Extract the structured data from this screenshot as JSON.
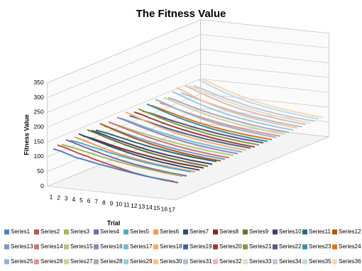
{
  "chart_data": {
    "type": "line3d",
    "title": "The Fitness Value",
    "x_label": "Trial",
    "y_label": "Fitness Value",
    "categories": [
      "1",
      "2",
      "3",
      "4",
      "5",
      "6",
      "7",
      "8",
      "9",
      "10",
      "11",
      "12",
      "13",
      "14",
      "15",
      "16",
      "17"
    ],
    "ylim": [
      0,
      350
    ],
    "yticks": [
      0,
      50,
      100,
      150,
      200,
      250,
      300,
      350
    ],
    "grid": true,
    "legend": "bottom",
    "series": [
      {
        "name": "Series1",
        "color": "#4F81BD",
        "values": [
          125,
          120,
          112,
          104,
          100,
          95,
          90,
          86,
          82,
          78,
          74,
          70,
          67,
          64,
          62,
          60,
          58
        ]
      },
      {
        "name": "Series2",
        "color": "#C0504D",
        "values": [
          132,
          126,
          118,
          110,
          104,
          96,
          90,
          84,
          78,
          72,
          66,
          62,
          58,
          55,
          52,
          50,
          48
        ]
      },
      {
        "name": "Series3",
        "color": "#9BBB59",
        "values": [
          128,
          124,
          119,
          113,
          108,
          102,
          97,
          92,
          88,
          84,
          80,
          77,
          74,
          71,
          68,
          66,
          64
        ]
      },
      {
        "name": "Series4",
        "color": "#8064A2",
        "values": [
          138,
          131,
          123,
          116,
          109,
          102,
          96,
          90,
          85,
          80,
          76,
          72,
          69,
          66,
          63,
          61,
          59
        ]
      },
      {
        "name": "Series5",
        "color": "#4BACC6",
        "values": [
          130,
          127,
          121,
          115,
          110,
          104,
          99,
          94,
          90,
          86,
          82,
          79,
          76,
          73,
          71,
          69,
          67
        ]
      },
      {
        "name": "Series6",
        "color": "#F79646",
        "values": [
          135,
          129,
          122,
          114,
          107,
          100,
          94,
          89,
          84,
          80,
          76,
          73,
          70,
          67,
          65,
          63,
          61
        ]
      },
      {
        "name": "Series7",
        "color": "#2C4D75",
        "values": [
          140,
          133,
          125,
          118,
          111,
          104,
          98,
          92,
          87,
          82,
          78,
          74,
          71,
          68,
          65,
          63,
          61
        ]
      },
      {
        "name": "Series8",
        "color": "#772C2A",
        "values": [
          127,
          123,
          117,
          111,
          105,
          99,
          94,
          89,
          85,
          81,
          77,
          74,
          71,
          68,
          66,
          64,
          62
        ]
      },
      {
        "name": "Series9",
        "color": "#5F7530",
        "values": [
          142,
          135,
          127,
          119,
          112,
          105,
          99,
          93,
          88,
          83,
          79,
          75,
          72,
          69,
          66,
          64,
          62
        ]
      },
      {
        "name": "Series10",
        "color": "#4D3B62",
        "values": [
          134,
          128,
          121,
          114,
          108,
          102,
          96,
          91,
          86,
          82,
          78,
          75,
          72,
          69,
          67,
          65,
          63
        ]
      },
      {
        "name": "Series11",
        "color": "#276A7C",
        "values": [
          129,
          125,
          120,
          114,
          109,
          103,
          98,
          93,
          89,
          85,
          81,
          78,
          75,
          72,
          70,
          68,
          66
        ]
      },
      {
        "name": "Series12",
        "color": "#B65708",
        "values": [
          145,
          137,
          128,
          120,
          112,
          105,
          99,
          93,
          88,
          83,
          79,
          75,
          72,
          69,
          66,
          64,
          62
        ]
      },
      {
        "name": "Series13",
        "color": "#729ACA",
        "values": [
          131,
          126,
          119,
          112,
          106,
          100,
          95,
          90,
          85,
          81,
          77,
          74,
          71,
          68,
          66,
          64,
          62
        ]
      },
      {
        "name": "Series14",
        "color": "#CD7371",
        "values": [
          139,
          132,
          124,
          117,
          110,
          103,
          97,
          92,
          87,
          82,
          78,
          74,
          71,
          68,
          65,
          63,
          61
        ]
      },
      {
        "name": "Series15",
        "color": "#AFC97A",
        "values": [
          126,
          122,
          116,
          110,
          105,
          100,
          95,
          90,
          86,
          82,
          78,
          75,
          72,
          69,
          67,
          65,
          63
        ]
      },
      {
        "name": "Series16",
        "color": "#9983B5",
        "values": [
          143,
          136,
          128,
          120,
          113,
          106,
          100,
          94,
          89,
          84,
          80,
          76,
          73,
          70,
          67,
          65,
          63
        ]
      },
      {
        "name": "Series17",
        "color": "#6FBDD1",
        "values": [
          133,
          127,
          120,
          113,
          107,
          101,
          96,
          91,
          86,
          82,
          78,
          75,
          72,
          69,
          67,
          65,
          63
        ]
      },
      {
        "name": "Series18",
        "color": "#F9AB6B",
        "values": [
          148,
          140,
          131,
          122,
          114,
          107,
          100,
          94,
          89,
          84,
          80,
          76,
          73,
          70,
          67,
          65,
          63
        ]
      },
      {
        "name": "Series19",
        "color": "#3A679C",
        "values": [
          130,
          125,
          119,
          113,
          107,
          101,
          96,
          91,
          87,
          83,
          79,
          76,
          73,
          70,
          68,
          66,
          64
        ]
      },
      {
        "name": "Series20",
        "color": "#9F3B38",
        "values": [
          137,
          131,
          123,
          116,
          109,
          103,
          97,
          92,
          87,
          83,
          79,
          75,
          72,
          69,
          66,
          64,
          62
        ]
      },
      {
        "name": "Series21",
        "color": "#7E9C40",
        "values": [
          141,
          134,
          126,
          118,
          111,
          104,
          98,
          93,
          88,
          83,
          79,
          76,
          73,
          70,
          67,
          65,
          63
        ]
      },
      {
        "name": "Series22",
        "color": "#664F83",
        "values": [
          128,
          124,
          118,
          112,
          106,
          101,
          96,
          91,
          87,
          83,
          79,
          76,
          73,
          70,
          68,
          66,
          64
        ]
      },
      {
        "name": "Series23",
        "color": "#358EA6",
        "values": [
          146,
          138,
          129,
          121,
          113,
          106,
          100,
          94,
          89,
          84,
          80,
          76,
          73,
          70,
          67,
          65,
          63
        ]
      },
      {
        "name": "Series24",
        "color": "#E07410",
        "values": [
          135,
          129,
          122,
          115,
          108,
          102,
          96,
          91,
          86,
          82,
          78,
          75,
          72,
          69,
          67,
          65,
          63
        ]
      },
      {
        "name": "Series25",
        "color": "#95B3D7",
        "values": [
          150,
          142,
          133,
          124,
          116,
          109,
          102,
          96,
          91,
          86,
          82,
          78,
          75,
          72,
          69,
          67,
          65
        ]
      },
      {
        "name": "Series26",
        "color": "#D99694",
        "values": [
          132,
          127,
          120,
          113,
          107,
          101,
          96,
          91,
          86,
          82,
          78,
          75,
          72,
          69,
          67,
          65,
          63
        ]
      },
      {
        "name": "Series27",
        "color": "#C3D69B",
        "values": [
          144,
          137,
          128,
          120,
          113,
          106,
          100,
          94,
          89,
          84,
          80,
          77,
          74,
          71,
          68,
          66,
          64
        ]
      },
      {
        "name": "Series28",
        "color": "#B3A2C7",
        "values": [
          138,
          132,
          124,
          117,
          110,
          104,
          98,
          93,
          88,
          84,
          80,
          76,
          73,
          70,
          68,
          66,
          64
        ]
      },
      {
        "name": "Series29",
        "color": "#93CDDD",
        "values": [
          152,
          144,
          134,
          125,
          117,
          110,
          103,
          97,
          92,
          87,
          83,
          79,
          76,
          73,
          70,
          68,
          66
        ]
      },
      {
        "name": "Series30",
        "color": "#FAC090",
        "values": [
          160,
          150,
          139,
          129,
          120,
          112,
          105,
          99,
          93,
          88,
          84,
          80,
          77,
          74,
          71,
          69,
          67
        ]
      },
      {
        "name": "Series31",
        "color": "#A7BFDE",
        "values": [
          136,
          130,
          123,
          116,
          110,
          104,
          98,
          93,
          88,
          84,
          80,
          77,
          74,
          71,
          69,
          67,
          65
        ]
      },
      {
        "name": "Series32",
        "color": "#E6B9B8",
        "values": [
          155,
          146,
          136,
          127,
          119,
          111,
          104,
          98,
          93,
          88,
          84,
          80,
          77,
          74,
          71,
          69,
          67
        ]
      },
      {
        "name": "Series33",
        "color": "#D7E4BD",
        "values": [
          149,
          141,
          132,
          124,
          116,
          109,
          103,
          97,
          92,
          87,
          83,
          79,
          76,
          73,
          70,
          68,
          66
        ]
      },
      {
        "name": "Series34",
        "color": "#CCC1DA",
        "values": [
          142,
          136,
          128,
          120,
          113,
          107,
          101,
          95,
          90,
          86,
          82,
          78,
          75,
          72,
          70,
          68,
          66
        ]
      },
      {
        "name": "Series35",
        "color": "#B7DEE8",
        "values": [
          158,
          148,
          138,
          128,
          120,
          112,
          105,
          99,
          94,
          89,
          85,
          81,
          78,
          75,
          72,
          70,
          68
        ]
      },
      {
        "name": "Series36",
        "color": "#FCD5B5",
        "values": [
          153,
          145,
          135,
          126,
          118,
          110,
          104,
          98,
          93,
          88,
          84,
          80,
          77,
          74,
          71,
          69,
          67
        ]
      }
    ]
  }
}
